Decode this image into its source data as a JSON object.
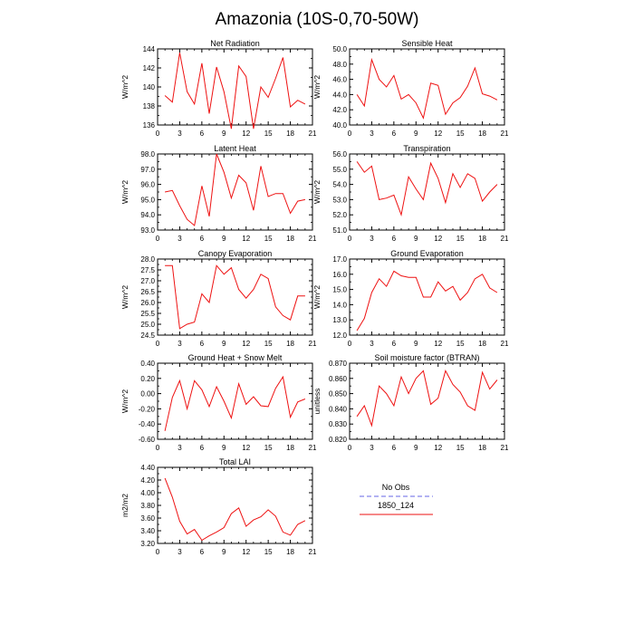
{
  "figure": {
    "title": "Amazonia (10S-0,70-50W)"
  },
  "legend": {
    "entries": [
      {
        "label": "No Obs",
        "color": "#9999ee",
        "dashed": true
      },
      {
        "label": "1850_124",
        "color": "#ee1111",
        "dashed": false
      }
    ]
  },
  "chart_data": [
    {
      "type": "line",
      "title": "Net Radiation",
      "ylabel": "W/m^2",
      "xlabel": "",
      "xlim": [
        0,
        21
      ],
      "ylim": [
        136,
        144
      ],
      "xticks": [
        "0",
        "3",
        "6",
        "9",
        "12",
        "15",
        "18",
        "21"
      ],
      "yticks": [
        "136",
        "138",
        "140",
        "142",
        "144"
      ],
      "series": [
        {
          "x": [
            1,
            2,
            3,
            4,
            5,
            6,
            7,
            8,
            9,
            10,
            11,
            12,
            13,
            14,
            15,
            16,
            17,
            18,
            19,
            20
          ],
          "values": [
            139.1,
            138.4,
            143.6,
            139.5,
            138.2,
            142.5,
            137.2,
            142.1,
            139.5,
            135.6,
            142.2,
            141.1,
            135.6,
            140.0,
            138.9,
            140.9,
            143.1,
            137.9,
            138.6,
            138.2
          ]
        }
      ]
    },
    {
      "type": "line",
      "title": "Sensible Heat",
      "ylabel": "W/m^2",
      "xlabel": "",
      "xlim": [
        0,
        21
      ],
      "ylim": [
        40,
        50
      ],
      "xticks": [
        "0",
        "3",
        "6",
        "9",
        "12",
        "15",
        "18",
        "21"
      ],
      "yticks": [
        "40.0",
        "42.0",
        "44.0",
        "46.0",
        "48.0",
        "50.0"
      ],
      "series": [
        {
          "x": [
            1,
            2,
            3,
            4,
            5,
            6,
            7,
            8,
            9,
            10,
            11,
            12,
            13,
            14,
            15,
            16,
            17,
            18,
            19,
            20
          ],
          "values": [
            44.0,
            42.5,
            48.6,
            46.0,
            45.0,
            46.5,
            43.4,
            44.0,
            42.9,
            40.9,
            45.5,
            45.2,
            41.4,
            42.9,
            43.6,
            45.1,
            47.5,
            44.1,
            43.8,
            43.3
          ]
        }
      ]
    },
    {
      "type": "line",
      "title": "Latent Heat",
      "ylabel": "W/m^2",
      "xlabel": "",
      "xlim": [
        0,
        21
      ],
      "ylim": [
        93,
        98
      ],
      "xticks": [
        "0",
        "3",
        "6",
        "9",
        "12",
        "15",
        "18",
        "21"
      ],
      "yticks": [
        "93.0",
        "94.0",
        "95.0",
        "96.0",
        "97.0",
        "98.0"
      ],
      "series": [
        {
          "x": [
            1,
            2,
            3,
            4,
            5,
            6,
            7,
            8,
            9,
            10,
            11,
            12,
            13,
            14,
            15,
            16,
            17,
            18,
            19,
            20
          ],
          "values": [
            95.5,
            95.6,
            94.6,
            93.7,
            93.3,
            95.9,
            93.9,
            98.0,
            96.8,
            95.1,
            96.6,
            96.1,
            94.3,
            97.2,
            95.2,
            95.4,
            95.4,
            94.1,
            94.9,
            95.0
          ]
        }
      ]
    },
    {
      "type": "line",
      "title": "Transpiration",
      "ylabel": "W/m^2",
      "xlabel": "",
      "xlim": [
        0,
        21
      ],
      "ylim": [
        51,
        56
      ],
      "xticks": [
        "0",
        "3",
        "6",
        "9",
        "12",
        "15",
        "18",
        "21"
      ],
      "yticks": [
        "51.0",
        "52.0",
        "53.0",
        "54.0",
        "55.0",
        "56.0"
      ],
      "series": [
        {
          "x": [
            1,
            2,
            3,
            4,
            5,
            6,
            7,
            8,
            9,
            10,
            11,
            12,
            13,
            14,
            15,
            16,
            17,
            18,
            19,
            20
          ],
          "values": [
            55.5,
            54.8,
            55.2,
            53.0,
            53.1,
            53.3,
            52.0,
            54.5,
            53.7,
            53.0,
            55.4,
            54.4,
            52.8,
            54.7,
            53.8,
            54.7,
            54.4,
            52.9,
            53.5,
            54.0
          ]
        }
      ]
    },
    {
      "type": "line",
      "title": "Canopy Evaporation",
      "ylabel": "W/m^2",
      "xlabel": "",
      "xlim": [
        0,
        21
      ],
      "ylim": [
        24.5,
        28
      ],
      "xticks": [
        "0",
        "3",
        "6",
        "9",
        "12",
        "15",
        "18",
        "21"
      ],
      "yticks": [
        "24.5",
        "25.0",
        "25.5",
        "26.0",
        "26.5",
        "27.0",
        "27.5",
        "28.0"
      ],
      "series": [
        {
          "x": [
            1,
            2,
            3,
            4,
            5,
            6,
            7,
            8,
            9,
            10,
            11,
            12,
            13,
            14,
            15,
            16,
            17,
            18,
            19,
            20
          ],
          "values": [
            27.7,
            27.7,
            24.8,
            25.0,
            25.1,
            26.4,
            26.0,
            27.7,
            27.3,
            27.6,
            26.6,
            26.2,
            26.6,
            27.3,
            27.1,
            25.8,
            25.4,
            25.2,
            26.3,
            26.3
          ]
        }
      ]
    },
    {
      "type": "line",
      "title": "Ground Evaporation",
      "ylabel": "W/m^2",
      "xlabel": "",
      "xlim": [
        0,
        21
      ],
      "ylim": [
        12,
        17
      ],
      "xticks": [
        "0",
        "3",
        "6",
        "9",
        "12",
        "15",
        "18",
        "21"
      ],
      "yticks": [
        "12.0",
        "13.0",
        "14.0",
        "15.0",
        "16.0",
        "17.0"
      ],
      "series": [
        {
          "x": [
            1,
            2,
            3,
            4,
            5,
            6,
            7,
            8,
            9,
            10,
            11,
            12,
            13,
            14,
            15,
            16,
            17,
            18,
            19,
            20
          ],
          "values": [
            12.3,
            13.1,
            14.8,
            15.7,
            15.2,
            16.2,
            15.9,
            15.8,
            15.8,
            14.5,
            14.5,
            15.5,
            14.9,
            15.2,
            14.3,
            14.8,
            15.7,
            16.0,
            15.1,
            14.8
          ]
        }
      ]
    },
    {
      "type": "line",
      "title": "Ground Heat + Snow Melt",
      "ylabel": "W/m^2",
      "xlabel": "",
      "xlim": [
        0,
        21
      ],
      "ylim": [
        -0.6,
        0.4
      ],
      "xticks": [
        "0",
        "3",
        "6",
        "9",
        "12",
        "15",
        "18",
        "21"
      ],
      "yticks": [
        "-0.60",
        "-0.40",
        "-0.20",
        "0.00",
        "0.20",
        "0.40"
      ],
      "series": [
        {
          "x": [
            1,
            2,
            3,
            4,
            5,
            6,
            7,
            8,
            9,
            10,
            11,
            12,
            13,
            14,
            15,
            16,
            17,
            18,
            19,
            20
          ],
          "values": [
            -0.49,
            -0.05,
            0.17,
            -0.2,
            0.17,
            0.05,
            -0.17,
            0.09,
            -0.1,
            -0.32,
            0.13,
            -0.14,
            -0.04,
            -0.16,
            -0.17,
            0.07,
            0.22,
            -0.31,
            -0.11,
            -0.07
          ]
        }
      ]
    },
    {
      "type": "line",
      "title": "Soil moisture factor (BTRAN)",
      "ylabel": "unitless",
      "xlabel": "",
      "xlim": [
        0,
        21
      ],
      "ylim": [
        0.82,
        0.87
      ],
      "xticks": [
        "0",
        "3",
        "6",
        "9",
        "12",
        "15",
        "18",
        "21"
      ],
      "yticks": [
        "0.820",
        "0.830",
        "0.840",
        "0.850",
        "0.860",
        "0.870"
      ],
      "series": [
        {
          "x": [
            1,
            2,
            3,
            4,
            5,
            6,
            7,
            8,
            9,
            10,
            11,
            12,
            13,
            14,
            15,
            16,
            17,
            18,
            19,
            20
          ],
          "values": [
            0.835,
            0.842,
            0.829,
            0.855,
            0.85,
            0.842,
            0.861,
            0.85,
            0.86,
            0.865,
            0.843,
            0.847,
            0.865,
            0.856,
            0.851,
            0.842,
            0.839,
            0.864,
            0.853,
            0.859
          ]
        }
      ]
    },
    {
      "type": "line",
      "title": "Total LAI",
      "ylabel": "m2/m2",
      "xlabel": "",
      "xlim": [
        0,
        21
      ],
      "ylim": [
        3.2,
        4.4
      ],
      "xticks": [
        "0",
        "3",
        "6",
        "9",
        "12",
        "15",
        "18",
        "21"
      ],
      "yticks": [
        "3.20",
        "3.40",
        "3.60",
        "3.80",
        "4.00",
        "4.20",
        "4.40"
      ],
      "series": [
        {
          "x": [
            1,
            2,
            3,
            4,
            5,
            6,
            7,
            8,
            9,
            10,
            11,
            12,
            13,
            14,
            15,
            16,
            17,
            18,
            19,
            20
          ],
          "values": [
            4.23,
            3.93,
            3.55,
            3.35,
            3.42,
            3.25,
            3.32,
            3.38,
            3.45,
            3.67,
            3.76,
            3.47,
            3.57,
            3.62,
            3.73,
            3.63,
            3.38,
            3.33,
            3.5,
            3.56
          ]
        }
      ]
    }
  ]
}
